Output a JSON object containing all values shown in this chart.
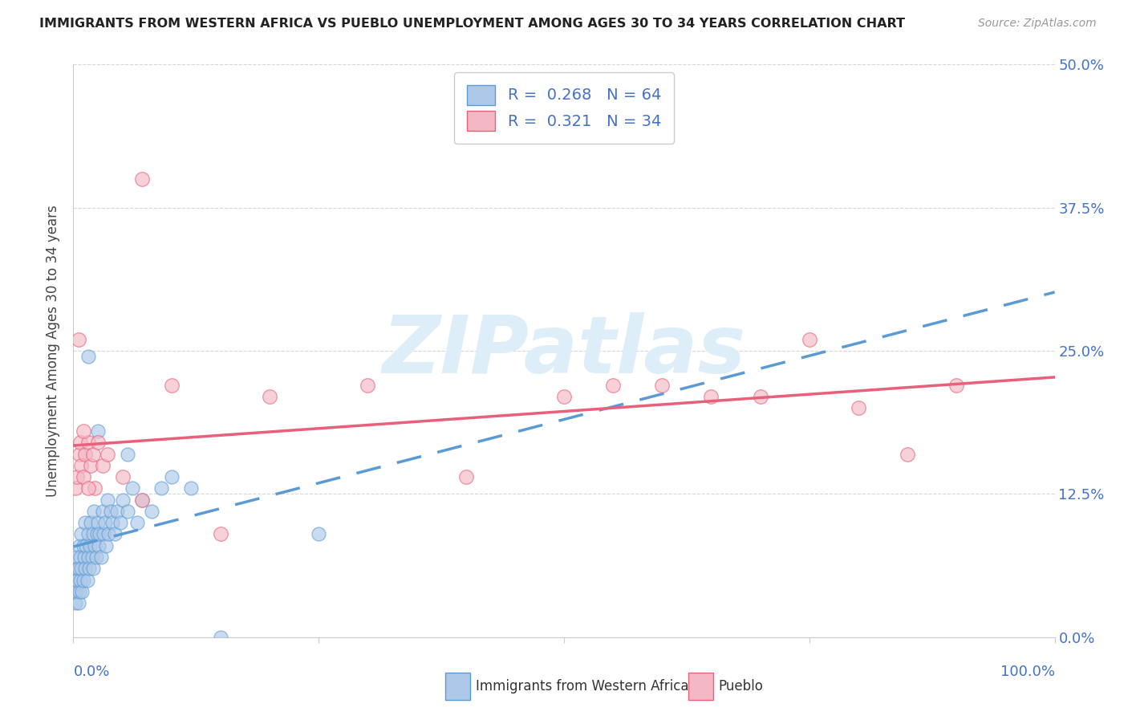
{
  "title": "IMMIGRANTS FROM WESTERN AFRICA VS PUEBLO UNEMPLOYMENT AMONG AGES 30 TO 34 YEARS CORRELATION CHART",
  "source": "Source: ZipAtlas.com",
  "ylabel": "Unemployment Among Ages 30 to 34 years",
  "ytick_vals": [
    0.0,
    0.125,
    0.25,
    0.375,
    0.5
  ],
  "ytick_labels": [
    "0.0%",
    "12.5%",
    "25.0%",
    "37.5%",
    "50.0%"
  ],
  "legend_label1": "Immigrants from Western Africa",
  "legend_label2": "Pueblo",
  "r1": 0.268,
  "n1": 64,
  "r2": 0.321,
  "n2": 34,
  "color_blue_fill": "#adc8e8",
  "color_blue_edge": "#5b9bd5",
  "color_pink_fill": "#f4b8c4",
  "color_pink_edge": "#e8607a",
  "color_blue_line": "#5b9bd5",
  "color_pink_line": "#e8607a",
  "color_label_blue": "#4472c4",
  "color_grid": "#cccccc",
  "watermark_text": "ZIPatlas",
  "watermark_color": "#ddeef8",
  "background": "#ffffff",
  "blue_x": [
    0.001,
    0.002,
    0.002,
    0.003,
    0.003,
    0.004,
    0.004,
    0.005,
    0.005,
    0.006,
    0.006,
    0.007,
    0.007,
    0.008,
    0.008,
    0.009,
    0.01,
    0.01,
    0.011,
    0.012,
    0.012,
    0.013,
    0.014,
    0.015,
    0.015,
    0.016,
    0.017,
    0.018,
    0.019,
    0.02,
    0.02,
    0.021,
    0.022,
    0.023,
    0.024,
    0.025,
    0.026,
    0.027,
    0.028,
    0.03,
    0.031,
    0.032,
    0.033,
    0.035,
    0.036,
    0.038,
    0.04,
    0.042,
    0.045,
    0.048,
    0.05,
    0.055,
    0.06,
    0.065,
    0.07,
    0.08,
    0.09,
    0.1,
    0.12,
    0.15,
    0.055,
    0.025,
    0.015,
    0.25
  ],
  "blue_y": [
    0.04,
    0.05,
    0.03,
    0.06,
    0.04,
    0.05,
    0.07,
    0.03,
    0.06,
    0.08,
    0.04,
    0.07,
    0.05,
    0.09,
    0.06,
    0.04,
    0.08,
    0.05,
    0.07,
    0.1,
    0.06,
    0.08,
    0.05,
    0.09,
    0.07,
    0.06,
    0.08,
    0.1,
    0.07,
    0.09,
    0.06,
    0.11,
    0.08,
    0.07,
    0.09,
    0.1,
    0.08,
    0.09,
    0.07,
    0.11,
    0.09,
    0.1,
    0.08,
    0.12,
    0.09,
    0.11,
    0.1,
    0.09,
    0.11,
    0.1,
    0.12,
    0.11,
    0.13,
    0.1,
    0.12,
    0.11,
    0.13,
    0.14,
    0.13,
    0.0,
    0.16,
    0.18,
    0.245,
    0.09
  ],
  "pink_x": [
    0.002,
    0.004,
    0.006,
    0.007,
    0.008,
    0.01,
    0.012,
    0.015,
    0.018,
    0.02,
    0.022,
    0.025,
    0.03,
    0.035,
    0.05,
    0.07,
    0.1,
    0.15,
    0.2,
    0.3,
    0.4,
    0.5,
    0.55,
    0.6,
    0.65,
    0.7,
    0.75,
    0.8,
    0.85,
    0.9,
    0.01,
    0.015,
    0.005,
    0.07
  ],
  "pink_y": [
    0.13,
    0.14,
    0.16,
    0.17,
    0.15,
    0.14,
    0.16,
    0.17,
    0.15,
    0.16,
    0.13,
    0.17,
    0.15,
    0.16,
    0.14,
    0.12,
    0.22,
    0.09,
    0.21,
    0.22,
    0.14,
    0.21,
    0.22,
    0.22,
    0.21,
    0.21,
    0.26,
    0.2,
    0.16,
    0.22,
    0.18,
    0.13,
    0.26,
    0.4
  ]
}
